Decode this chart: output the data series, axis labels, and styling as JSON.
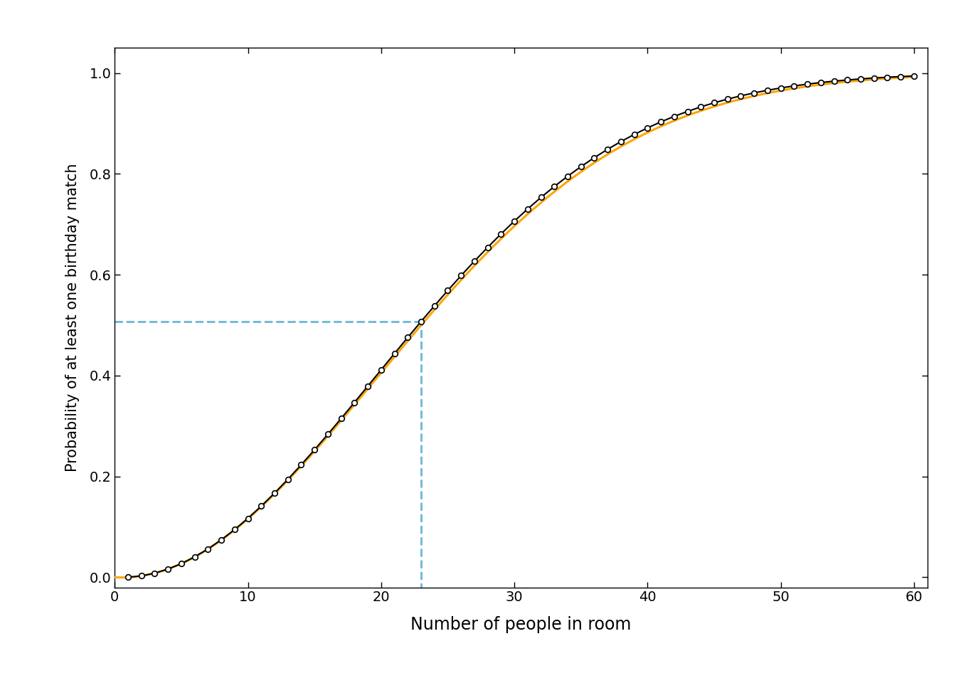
{
  "title": "",
  "xlabel": "Number of people in room",
  "ylabel": "Probability of at least one birthday match",
  "xlim": [
    0,
    61
  ],
  "ylim": [
    -0.02,
    1.05
  ],
  "xticks": [
    0,
    10,
    20,
    30,
    40,
    50,
    60
  ],
  "yticks": [
    0.0,
    0.2,
    0.4,
    0.6,
    0.8,
    1.0
  ],
  "n_days": 365,
  "n_max": 60,
  "highlight_n": 23,
  "highlight_p": 0.507,
  "dashed_color": "#74BCDA",
  "exact_color": "#000000",
  "poisson_color": "#FFA500",
  "background_color": "#FFFFFF",
  "marker_size": 5.5,
  "exact_linewidth": 1.5,
  "poisson_linewidth": 2.2,
  "dashed_linewidth": 2.2,
  "xlabel_fontsize": 17,
  "ylabel_fontsize": 15,
  "tick_fontsize": 14
}
